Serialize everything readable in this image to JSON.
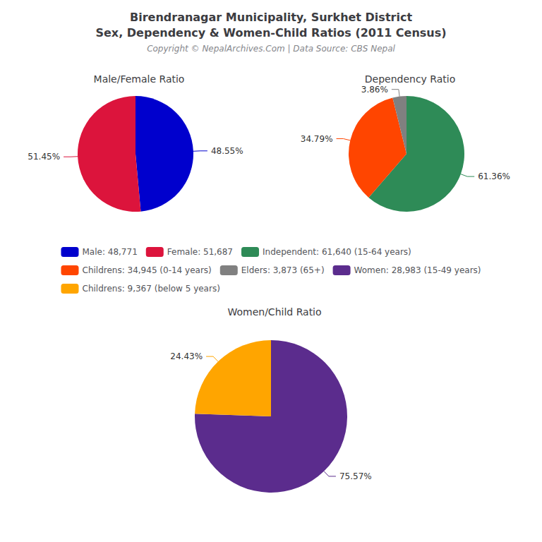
{
  "title": "Birendranagar Municipality, Surkhet District\nSex, Dependency & Women-Child Ratios (2011 Census)",
  "subtitle": "Copyright © NepalArchives.Com | Data Source: CBS Nepal",
  "legend": "center",
  "chart_data": [
    {
      "type": "pie",
      "title": "Male/Female Ratio",
      "categories": [
        "Male: 48,771",
        "Female: 51,687"
      ],
      "values": [
        48.55,
        51.45
      ],
      "value_labels": [
        "48.55%",
        "51.45%"
      ],
      "colors": [
        "#0000CD",
        "#DC143C"
      ],
      "data_labels": true
    },
    {
      "type": "pie",
      "title": "Dependency Ratio",
      "categories": [
        "Independent: 61,640 (15-64 years)",
        "Childrens: 34,945 (0-14 years)",
        "Elders: 3,873 (65+)"
      ],
      "values": [
        61.36,
        34.79,
        3.86
      ],
      "value_labels": [
        "61.36%",
        "34.79%",
        "3.86%"
      ],
      "colors": [
        "#2E8B57",
        "#FF4500",
        "#808080"
      ],
      "data_labels": true
    },
    {
      "type": "pie",
      "title": "Women/Child Ratio",
      "categories": [
        "Women: 28,983 (15-49 years)",
        "Childrens: 9,367 (below 5 years)"
      ],
      "values": [
        75.57,
        24.43
      ],
      "value_labels": [
        "75.57%",
        "24.43%"
      ],
      "colors": [
        "#5B2C8D",
        "#FFA500"
      ],
      "data_labels": true
    }
  ]
}
